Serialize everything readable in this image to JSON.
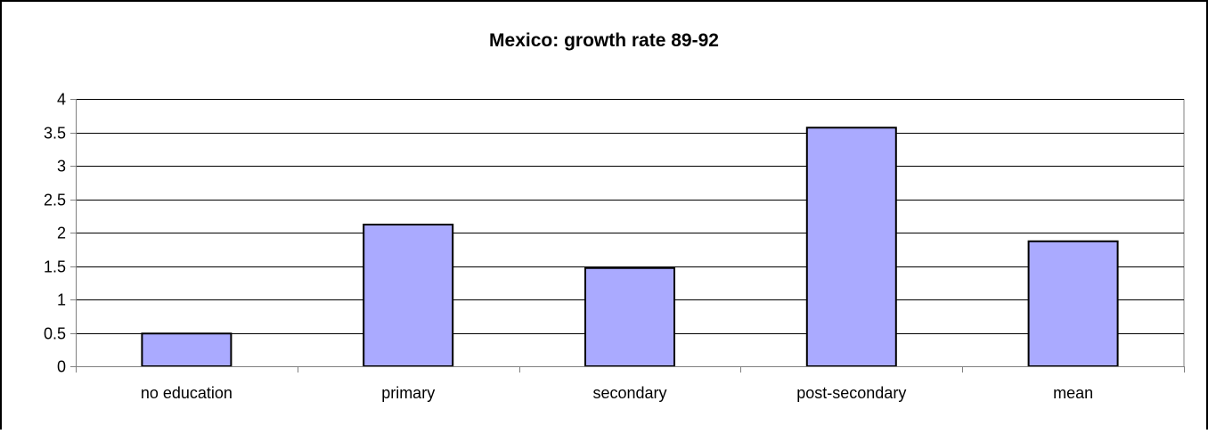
{
  "chart_data": {
    "type": "bar",
    "title": "Mexico: growth rate 89-92",
    "xlabel": "",
    "ylabel": "",
    "categories": [
      "no education",
      "primary",
      "secondary",
      "post-secondary",
      "mean"
    ],
    "values": [
      0.49,
      2.12,
      1.47,
      3.57,
      1.87
    ],
    "ylim": [
      0,
      4
    ],
    "yticks": [
      0,
      0.5,
      1,
      1.5,
      2,
      2.5,
      3,
      3.5,
      4
    ],
    "ytick_labels": [
      "0",
      "0.5",
      "1",
      "1.5",
      "2",
      "2.5",
      "3",
      "3.5",
      "4"
    ],
    "grid": true,
    "legend": "none",
    "colors": {
      "bar_fill": "#aaaaff",
      "bar_stroke": "#000000",
      "grid": "#000000",
      "axis": "#808080",
      "frame": "#000000"
    }
  }
}
